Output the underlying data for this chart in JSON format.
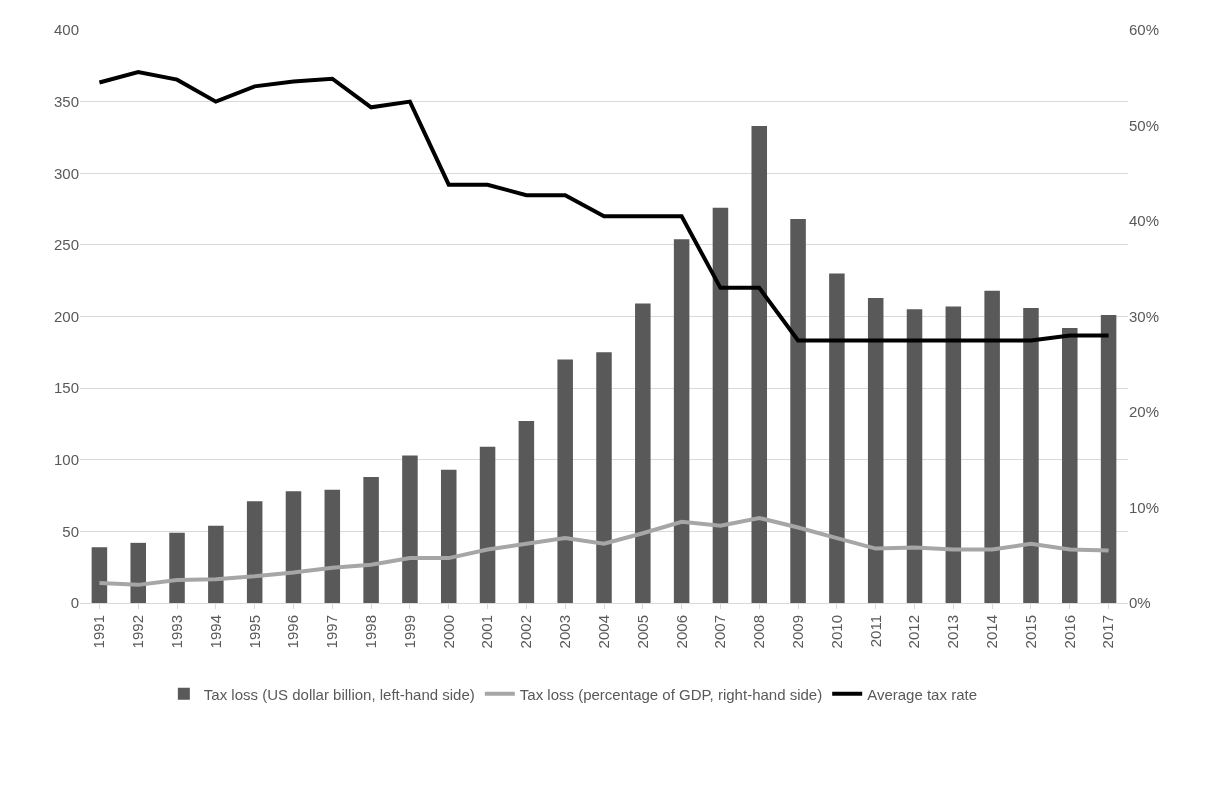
{
  "chart_data": {
    "type": "bar",
    "categories": [
      "1991",
      "1992",
      "1993",
      "1994",
      "1995",
      "1996",
      "1997",
      "1998",
      "1999",
      "2000",
      "2001",
      "2002",
      "2003",
      "2004",
      "2005",
      "2006",
      "2007",
      "2008",
      "2009",
      "2010",
      "2011",
      "2012",
      "2013",
      "2014",
      "2015",
      "2016",
      "2017"
    ],
    "series": [
      {
        "name": "Tax loss (US dollar billion, left-hand side)",
        "color": "#595959",
        "values": [
          39,
          42,
          49,
          54,
          71,
          78,
          79,
          88,
          103,
          93,
          109,
          127,
          170,
          175,
          209,
          254,
          276,
          333,
          268,
          230,
          213,
          205,
          207,
          218,
          206,
          192,
          201
        ]
      },
      {
        "name": "Tax loss (percentage of GDP, right-hand side)",
        "type": "line",
        "axis": "y2",
        "color": "#a6a6a6",
        "values": [
          2.1,
          1.9,
          2.4,
          2.5,
          2.8,
          3.2,
          3.7,
          4.0,
          4.7,
          4.7,
          5.6,
          6.2,
          6.8,
          6.2,
          7.3,
          8.5,
          8.1,
          8.9,
          7.9,
          6.8,
          5.7,
          5.8,
          5.6,
          5.6,
          6.2,
          5.6,
          5.5
        ]
      },
      {
        "name": "Average tax rate",
        "type": "line",
        "axis": "y2",
        "color": "#000000",
        "values": [
          54.5,
          55.6,
          54.8,
          52.5,
          54.1,
          54.6,
          54.9,
          51.9,
          52.5,
          43.8,
          43.8,
          42.7,
          42.7,
          40.5,
          40.5,
          40.5,
          33.0,
          33.0,
          27.5,
          27.5,
          27.5,
          27.5,
          27.5,
          27.5,
          27.5,
          28.0,
          28.0
        ]
      }
    ],
    "ylim": [
      0,
      400
    ],
    "yticks": [
      0,
      50,
      100,
      150,
      200,
      250,
      300,
      350,
      400
    ],
    "y2lim": [
      0,
      60
    ],
    "y2ticks": [
      {
        "value": 0,
        "label": "0%"
      },
      {
        "value": 10,
        "label": "10%"
      },
      {
        "value": 20,
        "label": "20%"
      },
      {
        "value": 30,
        "label": "30%"
      },
      {
        "value": 40,
        "label": "40%"
      },
      {
        "value": 50,
        "label": "50%"
      },
      {
        "value": 60,
        "label": "60%"
      }
    ],
    "grid": "y",
    "legend": "bottom",
    "marker": "none",
    "line_style": "solid"
  }
}
